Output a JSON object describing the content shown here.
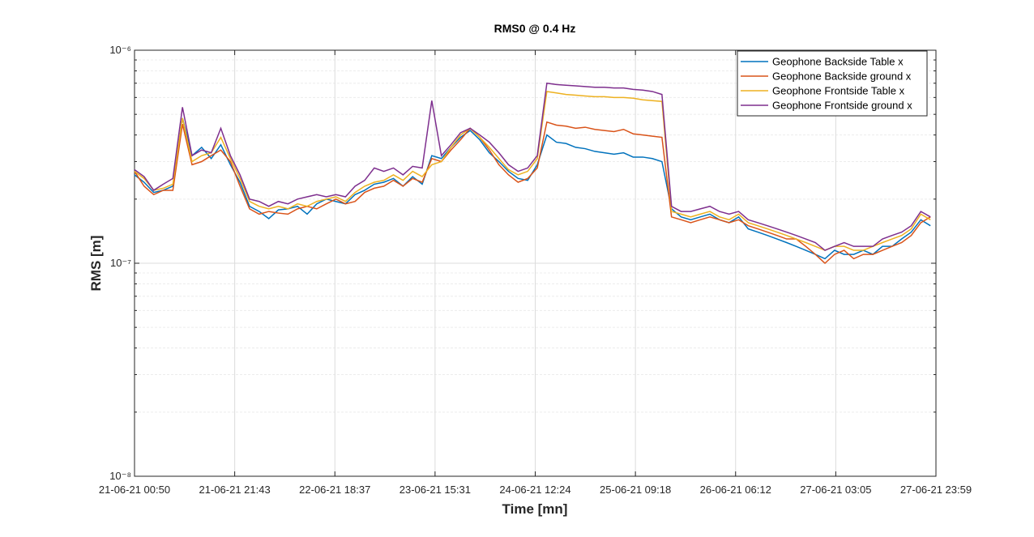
{
  "chart_data": {
    "type": "line",
    "title": "RMS0 @ 0.4 Hz",
    "x_label": "Time [mn]",
    "y_label": "RMS [m]",
    "x": [
      0,
      2,
      4,
      6,
      8,
      10,
      12,
      14,
      16,
      18,
      20,
      22,
      24,
      26,
      28,
      30,
      32,
      34,
      36,
      38,
      40,
      42,
      44,
      46,
      48,
      50,
      52,
      54,
      56,
      58,
      60,
      62,
      64,
      66,
      68,
      70,
      72,
      74,
      76,
      78,
      80,
      82,
      84,
      86,
      88,
      90,
      92,
      94,
      96,
      98,
      100,
      102,
      104,
      106,
      108,
      110,
      112,
      114,
      116,
      118,
      120,
      122,
      124,
      126,
      128,
      130,
      132,
      134,
      136,
      138,
      140,
      142,
      144,
      146,
      148,
      150,
      152,
      154,
      156,
      158,
      160,
      162,
      164,
      166
    ],
    "xlim": [
      0,
      167.15
    ],
    "xticks": [
      {
        "value": 0,
        "label": "21-06-21 00:50"
      },
      {
        "value": 20.894,
        "label": "21-06-21 21:43"
      },
      {
        "value": 41.788,
        "label": "22-06-21 18:37"
      },
      {
        "value": 62.681,
        "label": "23-06-21 15:31"
      },
      {
        "value": 83.575,
        "label": "24-06-21 12:24"
      },
      {
        "value": 104.469,
        "label": "25-06-21 09:18"
      },
      {
        "value": 125.363,
        "label": "26-06-21 06:12"
      },
      {
        "value": 146.256,
        "label": "27-06-21 03:05"
      },
      {
        "value": 167.15,
        "label": "27-06-21 23:59"
      }
    ],
    "ylim": [
      1e-08,
      1e-06
    ],
    "y_scale": "log",
    "yticks": [
      {
        "value": 1e-08,
        "label": "10⁻⁸"
      },
      {
        "value": 1e-07,
        "label": "10⁻⁷"
      },
      {
        "value": 1e-06,
        "label": "10⁻⁶"
      }
    ],
    "grid": true,
    "minor_grid": true,
    "legend": "top-right",
    "series": [
      {
        "name": "Geophone Backside Table x",
        "color": "#0072BD",
        "values": [
          2.6e-07,
          2.4e-07,
          2.15e-07,
          2.2e-07,
          2.3e-07,
          4.8e-07,
          3.2e-07,
          3.5e-07,
          3.1e-07,
          3.6e-07,
          2.9e-07,
          2.4e-07,
          1.85e-07,
          1.75e-07,
          1.62e-07,
          1.78e-07,
          1.8e-07,
          1.85e-07,
          1.7e-07,
          1.9e-07,
          2e-07,
          1.95e-07,
          1.9e-07,
          2.1e-07,
          2.2e-07,
          2.35e-07,
          2.4e-07,
          2.5e-07,
          2.3e-07,
          2.55e-07,
          2.35e-07,
          3.2e-07,
          3.1e-07,
          3.5e-07,
          3.9e-07,
          4.2e-07,
          3.8e-07,
          3.3e-07,
          3e-07,
          2.7e-07,
          2.5e-07,
          2.45e-07,
          2.9e-07,
          4e-07,
          3.7e-07,
          3.65e-07,
          3.5e-07,
          3.45e-07,
          3.35e-07,
          3.3e-07,
          3.25e-07,
          3.3e-07,
          3.15e-07,
          3.15e-07,
          3.1e-07,
          3e-07,
          1.8e-07,
          1.65e-07,
          1.6e-07,
          1.65e-07,
          1.7e-07,
          1.6e-07,
          1.55e-07,
          1.65e-07,
          1.45e-07,
          1.4e-07,
          1.35e-07,
          1.3e-07,
          1.25e-07,
          1.2e-07,
          1.15e-07,
          1.1e-07,
          1.05e-07,
          1.15e-07,
          1.1e-07,
          1.1e-07,
          1.15e-07,
          1.1e-07,
          1.2e-07,
          1.2e-07,
          1.3e-07,
          1.4e-07,
          1.6e-07,
          1.5e-07
        ]
      },
      {
        "name": "Geophone Backside ground x",
        "color": "#D95319",
        "values": [
          2.7e-07,
          2.3e-07,
          2.1e-07,
          2.2e-07,
          2.2e-07,
          4.5e-07,
          2.9e-07,
          3e-07,
          3.2e-07,
          3.4e-07,
          3e-07,
          2.3e-07,
          1.8e-07,
          1.7e-07,
          1.75e-07,
          1.72e-07,
          1.7e-07,
          1.8e-07,
          1.85e-07,
          1.8e-07,
          1.9e-07,
          2e-07,
          1.9e-07,
          1.95e-07,
          2.15e-07,
          2.25e-07,
          2.3e-07,
          2.45e-07,
          2.3e-07,
          2.5e-07,
          2.4e-07,
          3.1e-07,
          3e-07,
          3.4e-07,
          3.8e-07,
          4.3e-07,
          3.9e-07,
          3.4e-07,
          2.9e-07,
          2.6e-07,
          2.4e-07,
          2.5e-07,
          2.8e-07,
          4.6e-07,
          4.45e-07,
          4.4e-07,
          4.3e-07,
          4.35e-07,
          4.25e-07,
          4.2e-07,
          4.15e-07,
          4.25e-07,
          4.05e-07,
          4e-07,
          3.95e-07,
          3.9e-07,
          1.65e-07,
          1.6e-07,
          1.55e-07,
          1.6e-07,
          1.65e-07,
          1.6e-07,
          1.55e-07,
          1.6e-07,
          1.5e-07,
          1.45e-07,
          1.4e-07,
          1.35e-07,
          1.3e-07,
          1.3e-07,
          1.2e-07,
          1.1e-07,
          1e-07,
          1.1e-07,
          1.15e-07,
          1.05e-07,
          1.1e-07,
          1.1e-07,
          1.15e-07,
          1.2e-07,
          1.25e-07,
          1.35e-07,
          1.55e-07,
          1.65e-07
        ]
      },
      {
        "name": "Geophone Frontside Table x",
        "color": "#EDB120",
        "values": [
          2.7e-07,
          2.5e-07,
          2.2e-07,
          2.25e-07,
          2.35e-07,
          4.8e-07,
          3e-07,
          3.2e-07,
          3.3e-07,
          3.9e-07,
          3.1e-07,
          2.5e-07,
          1.95e-07,
          1.85e-07,
          1.8e-07,
          1.85e-07,
          1.8e-07,
          1.9e-07,
          1.85e-07,
          1.95e-07,
          2e-07,
          2.05e-07,
          1.95e-07,
          2.15e-07,
          2.3e-07,
          2.4e-07,
          2.45e-07,
          2.6e-07,
          2.45e-07,
          2.7e-07,
          2.55e-07,
          2.9e-07,
          3e-07,
          3.5e-07,
          4e-07,
          4.3e-07,
          3.9e-07,
          3.5e-07,
          3.1e-07,
          2.75e-07,
          2.6e-07,
          2.7e-07,
          3.1e-07,
          6.4e-07,
          6.3e-07,
          6.2e-07,
          6.15e-07,
          6.1e-07,
          6.05e-07,
          6.05e-07,
          6e-07,
          6e-07,
          5.95e-07,
          5.85e-07,
          5.8e-07,
          5.75e-07,
          1.75e-07,
          1.7e-07,
          1.65e-07,
          1.7e-07,
          1.75e-07,
          1.65e-07,
          1.6e-07,
          1.7e-07,
          1.55e-07,
          1.5e-07,
          1.45e-07,
          1.4e-07,
          1.35e-07,
          1.3e-07,
          1.25e-07,
          1.2e-07,
          1.15e-07,
          1.2e-07,
          1.2e-07,
          1.15e-07,
          1.15e-07,
          1.2e-07,
          1.25e-07,
          1.3e-07,
          1.35e-07,
          1.45e-07,
          1.7e-07,
          1.6e-07
        ]
      },
      {
        "name": "Geophone Frontside ground x",
        "color": "#7E2F8E",
        "values": [
          2.75e-07,
          2.55e-07,
          2.2e-07,
          2.35e-07,
          2.5e-07,
          5.4e-07,
          3.2e-07,
          3.4e-07,
          3.3e-07,
          4.3e-07,
          3.2e-07,
          2.6e-07,
          2e-07,
          1.95e-07,
          1.85e-07,
          1.95e-07,
          1.9e-07,
          2e-07,
          2.05e-07,
          2.1e-07,
          2.05e-07,
          2.1e-07,
          2.05e-07,
          2.3e-07,
          2.45e-07,
          2.8e-07,
          2.7e-07,
          2.8e-07,
          2.6e-07,
          2.85e-07,
          2.8e-07,
          5.8e-07,
          3.2e-07,
          3.6e-07,
          4.1e-07,
          4.3e-07,
          4e-07,
          3.7e-07,
          3.3e-07,
          2.9e-07,
          2.7e-07,
          2.8e-07,
          3.2e-07,
          7e-07,
          6.9e-07,
          6.85e-07,
          6.8e-07,
          6.75e-07,
          6.7e-07,
          6.7e-07,
          6.65e-07,
          6.65e-07,
          6.55e-07,
          6.5e-07,
          6.4e-07,
          6.2e-07,
          1.85e-07,
          1.75e-07,
          1.75e-07,
          1.8e-07,
          1.85e-07,
          1.75e-07,
          1.7e-07,
          1.75e-07,
          1.6e-07,
          1.55e-07,
          1.5e-07,
          1.45e-07,
          1.4e-07,
          1.35e-07,
          1.3e-07,
          1.25e-07,
          1.15e-07,
          1.2e-07,
          1.25e-07,
          1.2e-07,
          1.2e-07,
          1.2e-07,
          1.3e-07,
          1.35e-07,
          1.4e-07,
          1.5e-07,
          1.75e-07,
          1.65e-07
        ]
      }
    ]
  }
}
